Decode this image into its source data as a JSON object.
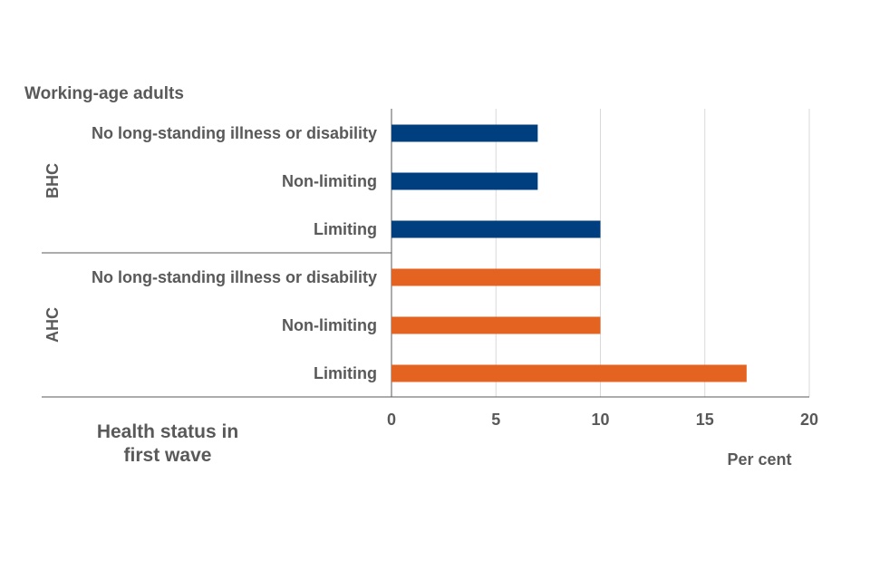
{
  "chart_data": {
    "type": "bar",
    "orientation": "horizontal",
    "title": "Working-age  adults",
    "xlabel": "Per cent",
    "ylabel": "Health status in\nfirst wave",
    "xlim": [
      0,
      20
    ],
    "xticks": [
      0,
      5,
      10,
      15,
      20
    ],
    "grid": true,
    "groups": [
      {
        "name": "BHC",
        "color": "#003f7f",
        "categories": [
          "No long-standing illness or disability",
          "Non-limiting",
          "Limiting"
        ],
        "values": [
          7,
          7,
          10
        ]
      },
      {
        "name": "AHC",
        "color": "#e46321",
        "categories": [
          "No long-standing illness or disability",
          "Non-limiting",
          "Limiting"
        ],
        "values": [
          10,
          10,
          17
        ]
      }
    ]
  }
}
